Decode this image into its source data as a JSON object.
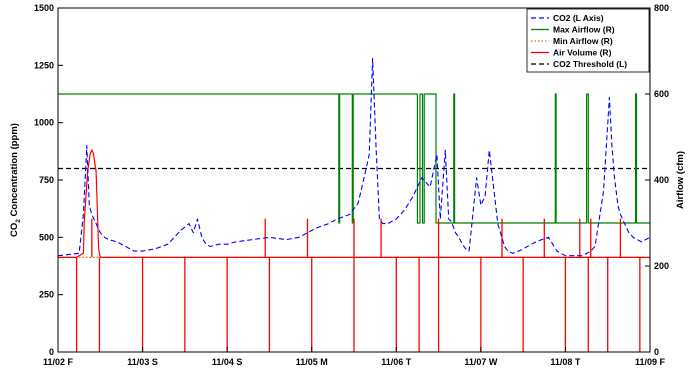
{
  "chart_data": {
    "type": "line",
    "ylabel_left_main": "CO",
    "ylabel_left_sub": "2",
    "ylabel_left_rest": " Concentration (ppm)",
    "ylabel_right": "Airflow (cfm)",
    "ylim_left": [
      0,
      1500
    ],
    "ylim_right": [
      0,
      800
    ],
    "yticks_left": [
      0,
      250,
      500,
      750,
      1000,
      1250,
      1500
    ],
    "yticks_right": [
      0,
      200,
      400,
      600,
      800
    ],
    "xlim": [
      0,
      7
    ],
    "xticks": [
      0,
      1,
      2,
      3,
      4,
      5,
      6,
      7
    ],
    "xtick_labels": [
      "11/02 F",
      "11/03 S",
      "11/04 S",
      "11/05 M",
      "11/06 T",
      "11/07 W",
      "11/08 T",
      "11/09 F"
    ],
    "grid": false,
    "legend_position": "top-right",
    "co2_threshold": 800,
    "series": [
      {
        "name": "CO2 (L Axis)",
        "axis": "left",
        "color": "#0000ff",
        "dash": "dashed",
        "x": [
          0,
          0.25,
          0.3,
          0.34,
          0.37,
          0.4,
          0.45,
          0.5,
          0.55,
          0.6,
          0.7,
          0.8,
          0.9,
          1.0,
          1.15,
          1.3,
          1.45,
          1.55,
          1.6,
          1.65,
          1.7,
          1.75,
          1.8,
          1.9,
          2.0,
          2.1,
          2.3,
          2.5,
          2.7,
          2.85,
          2.95,
          3.05,
          3.2,
          3.3,
          3.45,
          3.55,
          3.62,
          3.68,
          3.72,
          3.76,
          3.8,
          3.84,
          3.9,
          4.0,
          4.1,
          4.2,
          4.3,
          4.4,
          4.48,
          4.52,
          4.58,
          4.62,
          4.65,
          4.7,
          4.74,
          4.78,
          4.82,
          4.86,
          4.9,
          4.95,
          5.0,
          5.05,
          5.1,
          5.2,
          5.28,
          5.32,
          5.38,
          5.42,
          5.45,
          5.5,
          5.55,
          5.6,
          5.65,
          5.72,
          5.8,
          5.9,
          6.0,
          6.1,
          6.2,
          6.25,
          6.3,
          6.35,
          6.45,
          6.52,
          6.55,
          6.58,
          6.62,
          6.65,
          6.7,
          6.75,
          6.8,
          6.85,
          6.9,
          7.0
        ],
        "y": [
          420,
          430,
          600,
          900,
          640,
          600,
          560,
          520,
          500,
          490,
          480,
          460,
          440,
          440,
          450,
          470,
          530,
          560,
          520,
          580,
          500,
          470,
          460,
          470,
          470,
          480,
          490,
          500,
          490,
          500,
          520,
          540,
          560,
          580,
          600,
          650,
          760,
          860,
          1280,
          900,
          580,
          560,
          560,
          580,
          620,
          680,
          760,
          720,
          860,
          580,
          880,
          580,
          570,
          520,
          500,
          470,
          450,
          440,
          580,
          760,
          640,
          680,
          880,
          560,
          460,
          440,
          430,
          440,
          440,
          450,
          460,
          470,
          480,
          490,
          500,
          440,
          420,
          420,
          420,
          430,
          440,
          460,
          700,
          1110,
          900,
          760,
          640,
          600,
          560,
          520,
          500,
          490,
          480,
          500
        ]
      },
      {
        "name": "Max Airflow (R)",
        "axis": "right",
        "color": "#008000",
        "dash": "solid",
        "x": [
          0,
          3.32,
          3.32,
          3.33,
          3.33,
          3.48,
          3.48,
          3.49,
          3.49,
          4.25,
          4.25,
          4.28,
          4.28,
          4.31,
          4.31,
          4.33,
          4.33,
          4.47,
          4.47,
          4.68,
          4.68,
          4.69,
          4.69,
          5.88,
          5.88,
          5.89,
          5.89,
          6.25,
          6.25,
          6.27,
          6.27,
          6.83,
          6.83,
          6.84,
          6.84,
          7.0
        ],
        "y": [
          600,
          600,
          300,
          300,
          600,
          600,
          300,
          300,
          600,
          600,
          300,
          300,
          600,
          600,
          300,
          300,
          600,
          600,
          300,
          300,
          600,
          600,
          300,
          300,
          600,
          600,
          300,
          300,
          600,
          600,
          300,
          300,
          600,
          600,
          300,
          300
        ]
      },
      {
        "name": "Min Airflow (R)",
        "axis": "right",
        "color": "#ff6600",
        "dash": "dotted",
        "x": [
          0,
          7
        ],
        "y": [
          220,
          220
        ]
      },
      {
        "name": "Air Volume (R)",
        "axis": "right",
        "color": "#ff0000",
        "dash": "solid",
        "x": [
          0,
          0.2,
          0.21,
          0.22,
          0.3,
          0.31,
          0.35,
          0.38,
          0.4,
          0.42,
          0.45,
          0.48,
          0.5,
          0.6,
          0.9,
          1.0,
          1.5,
          1.7,
          2.0,
          2.5,
          2.8,
          3.0,
          3.5,
          3.8,
          4.0,
          4.5,
          5.0,
          5.5,
          6.0,
          6.5,
          7.0
        ],
        "y": [
          220,
          220,
          220,
          220,
          230,
          300,
          420,
          460,
          470,
          460,
          420,
          240,
          220,
          220,
          220,
          220,
          220,
          220,
          220,
          220,
          220,
          220,
          220,
          220,
          220,
          220,
          220,
          220,
          220,
          220,
          220
        ],
        "spikes_down": [
          0.22,
          0.49,
          1.0,
          1.5,
          2.0,
          2.5,
          3.0,
          3.5,
          4.0,
          4.27,
          4.5,
          5.0,
          5.5,
          6.0,
          6.27,
          6.5,
          6.88
        ],
        "spikes_up": [
          0.4,
          2.45,
          2.95,
          3.5,
          3.82,
          4.5,
          5.25,
          5.75,
          6.17,
          6.3,
          6.65
        ]
      },
      {
        "name": "CO2 Threshold (L)",
        "axis": "left",
        "color": "#000000",
        "dash": "dashed",
        "x": [
          0,
          7
        ],
        "y": [
          800,
          800
        ]
      }
    ]
  }
}
